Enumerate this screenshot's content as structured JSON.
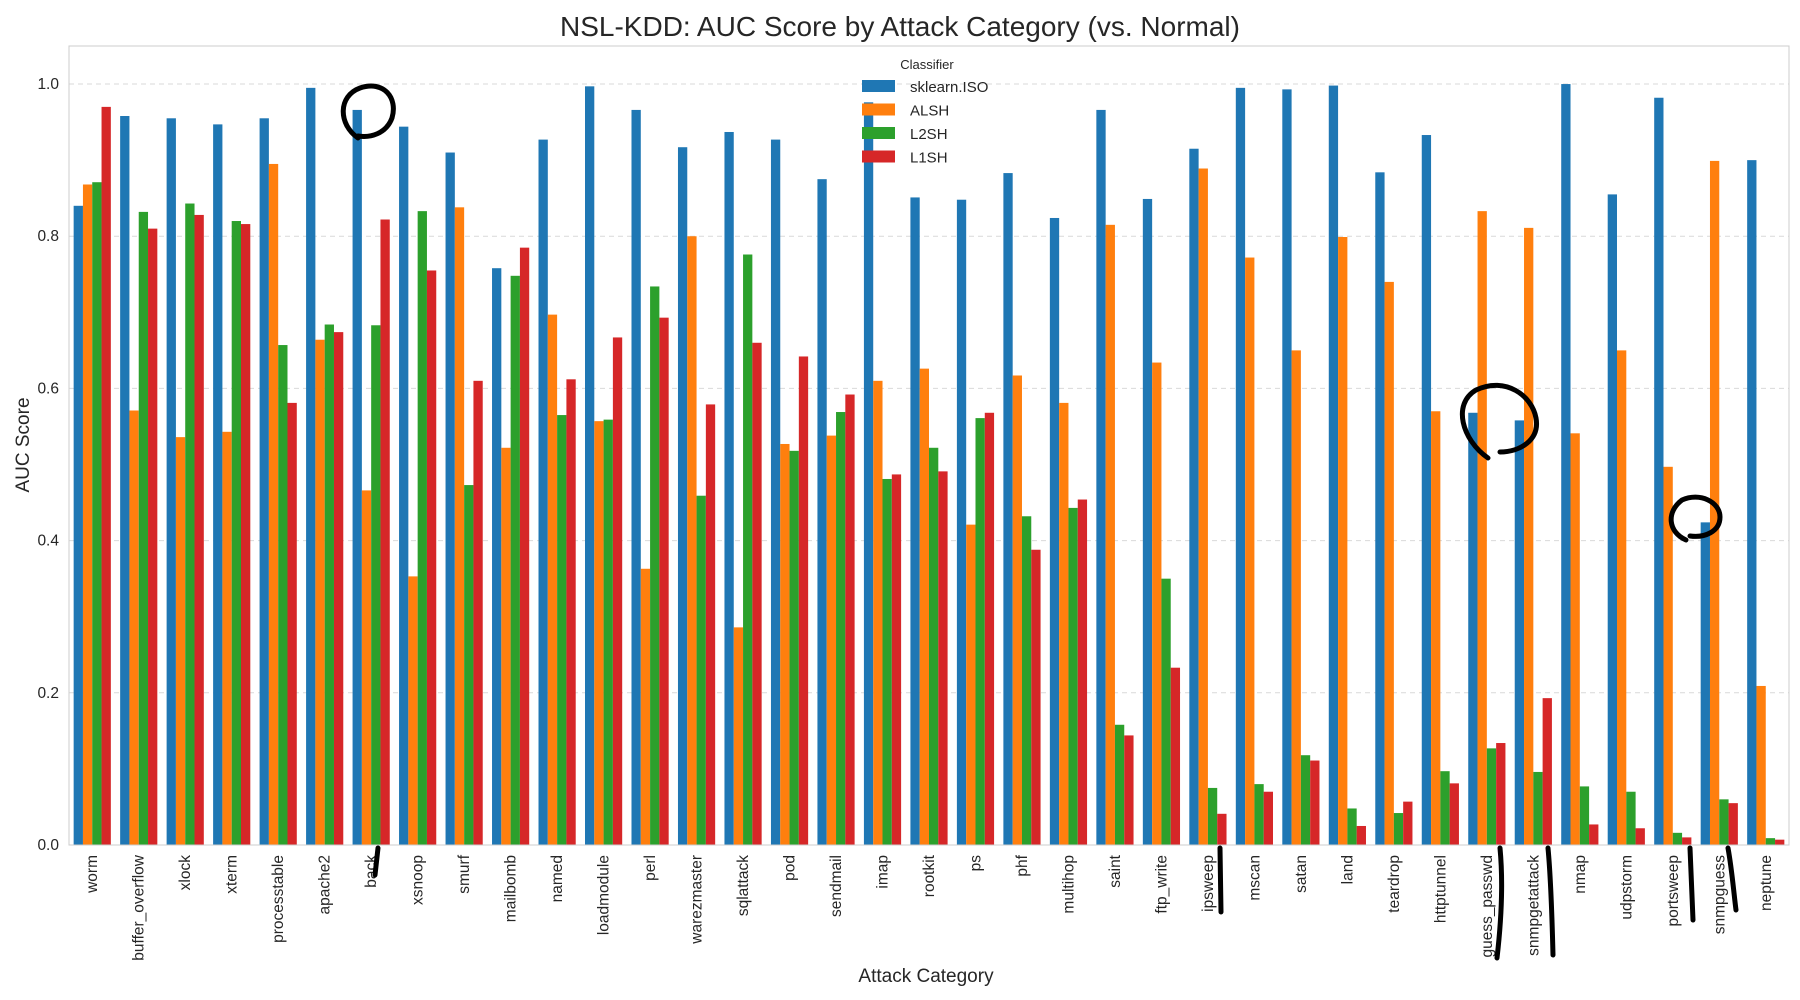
{
  "chart_data": {
    "type": "bar",
    "title": "NSL-KDD: AUC Score by Attack Category (vs. Normal)",
    "xlabel": "Attack Category",
    "ylabel": "AUC Score",
    "ylim": [
      0,
      1.05
    ],
    "yticks": [
      "0.0",
      "0.2",
      "0.4",
      "0.6",
      "0.8",
      "1.0"
    ],
    "grid": "y-dashed",
    "legend": {
      "title": "Classifier",
      "placement": "top-center"
    },
    "categories": [
      "worm",
      "buffer_overflow",
      "xlock",
      "xterm",
      "processtable",
      "apache2",
      "back",
      "xsnoop",
      "smurf",
      "mailbomb",
      "named",
      "loadmodule",
      "perl",
      "warezmaster",
      "sqlattack",
      "pod",
      "sendmail",
      "imap",
      "rootkit",
      "ps",
      "phf",
      "multihop",
      "saint",
      "ftp_write",
      "ipsweep",
      "mscan",
      "satan",
      "land",
      "teardrop",
      "httptunnel",
      "guess_passwd",
      "snmpgetattack",
      "nmap",
      "udpstorm",
      "portsweep",
      "snmpguess",
      "neptune"
    ],
    "series": [
      {
        "name": "sklearn.ISO",
        "color": "#1f77b4",
        "values": [
          0.84,
          0.958,
          0.955,
          0.947,
          0.955,
          0.995,
          0.966,
          0.944,
          0.91,
          0.758,
          0.927,
          0.997,
          0.966,
          0.917,
          0.937,
          0.927,
          0.875,
          0.976,
          0.851,
          0.848,
          0.883,
          0.824,
          0.966,
          0.849,
          0.915,
          0.995,
          0.993,
          0.998,
          0.884,
          0.933,
          0.568,
          0.558,
          1.0,
          0.855,
          0.982,
          0.424,
          0.9
        ]
      },
      {
        "name": "ALSH",
        "color": "#ff7f0e",
        "values": [
          0.868,
          0.571,
          0.536,
          0.543,
          0.895,
          0.664,
          0.466,
          0.353,
          0.838,
          0.522,
          0.697,
          0.557,
          0.363,
          0.8,
          0.286,
          0.527,
          0.538,
          0.61,
          0.626,
          0.421,
          0.617,
          0.581,
          0.815,
          0.634,
          0.889,
          0.772,
          0.65,
          0.799,
          0.74,
          0.57,
          0.833,
          0.811,
          0.541,
          0.65,
          0.497,
          0.899,
          0.209
        ]
      },
      {
        "name": "L2SH",
        "color": "#2ca02c",
        "values": [
          0.871,
          0.832,
          0.843,
          0.82,
          0.657,
          0.684,
          0.683,
          0.833,
          0.473,
          0.748,
          0.565,
          0.559,
          0.734,
          0.459,
          0.776,
          0.518,
          0.569,
          0.481,
          0.522,
          0.561,
          0.432,
          0.443,
          0.158,
          0.35,
          0.075,
          0.08,
          0.118,
          0.048,
          0.042,
          0.097,
          0.127,
          0.096,
          0.077,
          0.07,
          0.016,
          0.06,
          0.009
        ]
      },
      {
        "name": "L1SH",
        "color": "#d62728",
        "values": [
          0.97,
          0.81,
          0.828,
          0.816,
          0.581,
          0.674,
          0.822,
          0.755,
          0.61,
          0.785,
          0.612,
          0.667,
          0.693,
          0.579,
          0.66,
          0.642,
          0.592,
          0.487,
          0.491,
          0.568,
          0.388,
          0.454,
          0.144,
          0.233,
          0.041,
          0.07,
          0.111,
          0.025,
          0.057,
          0.081,
          0.134,
          0.193,
          0.027,
          0.022,
          0.01,
          0.055,
          0.007
        ]
      }
    ]
  }
}
